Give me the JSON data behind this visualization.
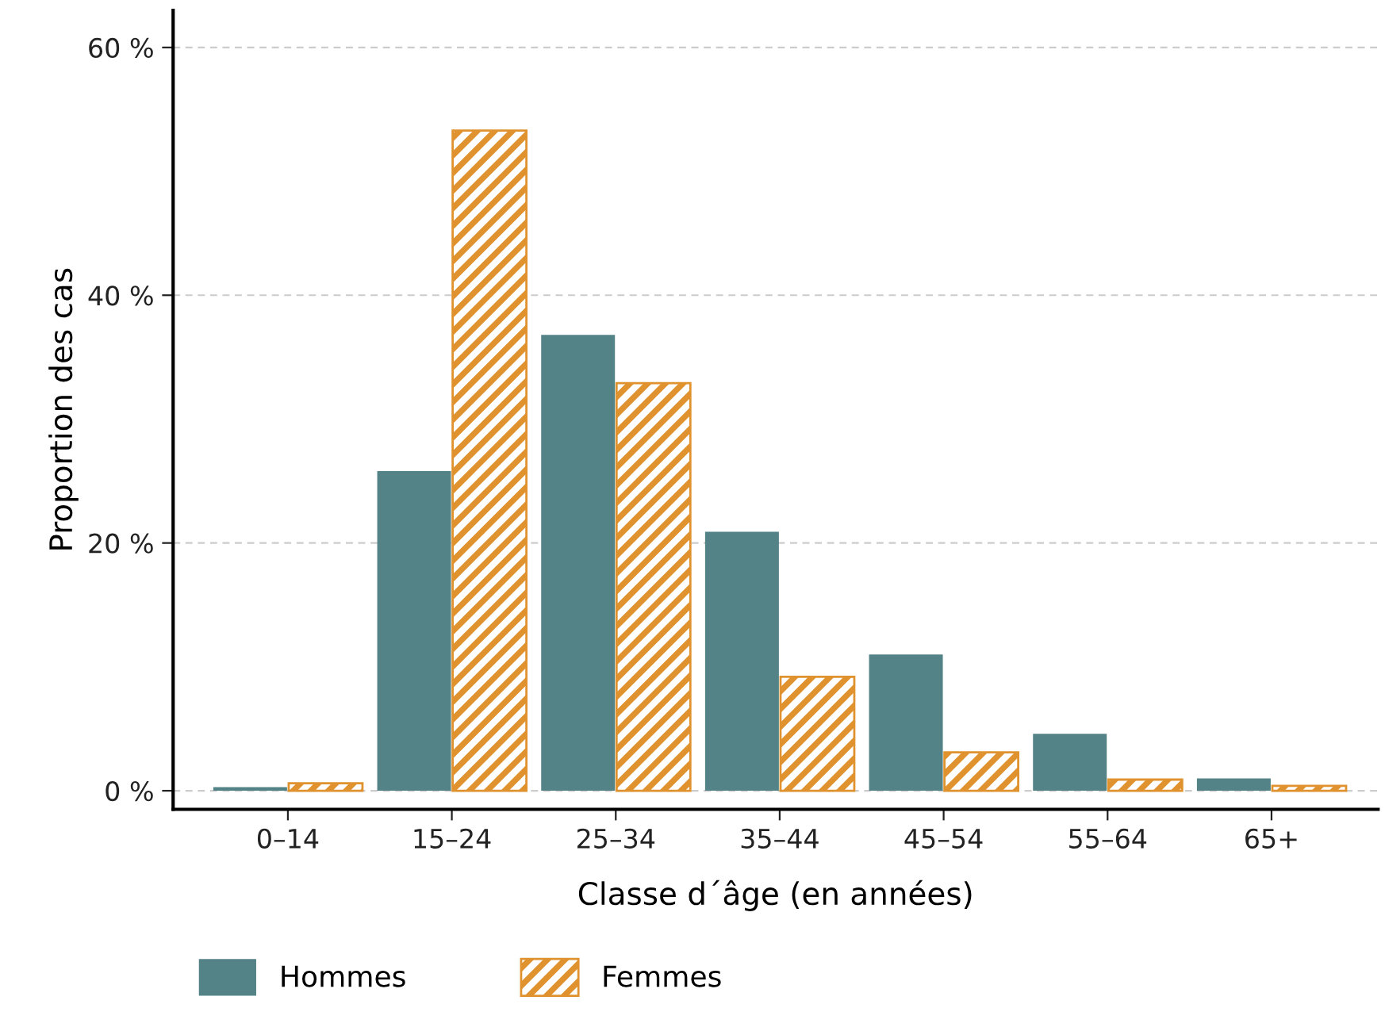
{
  "chart_data": {
    "type": "bar",
    "xlabel": "Classe d´âge (en années)",
    "ylabel": "Proportion des cas",
    "categories": [
      "0–14",
      "15–24",
      "25–34",
      "35–44",
      "45–54",
      "55–64",
      "65+"
    ],
    "series": [
      {
        "name": "Hommes",
        "color": "#538387",
        "values": [
          0.3,
          25.8,
          36.8,
          20.9,
          11.0,
          4.6,
          1.0
        ]
      },
      {
        "name": "Femmes",
        "color": "#e0922f",
        "values": [
          0.6,
          53.3,
          32.9,
          9.2,
          3.1,
          0.9,
          0.4
        ]
      }
    ],
    "ylim": [
      -1.5,
      63
    ],
    "yticks": [
      {
        "value": 0,
        "label": "0 %"
      },
      {
        "value": 20,
        "label": "20 %"
      },
      {
        "value": 40,
        "label": "40 %"
      },
      {
        "value": 60,
        "label": "60 %"
      }
    ],
    "grid": "y",
    "legend": "bottom left"
  }
}
